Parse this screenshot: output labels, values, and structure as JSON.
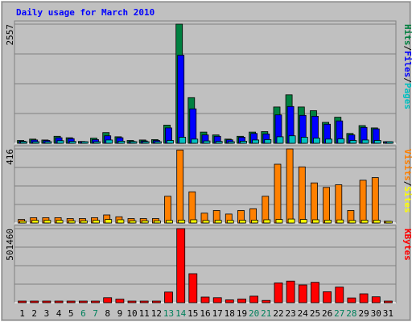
{
  "chart_data": {
    "type": "bar",
    "title": "Daily usage for March 2010",
    "categories": [
      "1",
      "2",
      "3",
      "4",
      "5",
      "6",
      "7",
      "8",
      "9",
      "10",
      "11",
      "12",
      "13",
      "14",
      "15",
      "16",
      "17",
      "18",
      "19",
      "20",
      "21",
      "22",
      "23",
      "24",
      "25",
      "26",
      "27",
      "28",
      "29",
      "30",
      "31"
    ],
    "weekend_days": [
      "6",
      "7",
      "13",
      "14",
      "20",
      "21",
      "27",
      "28"
    ],
    "panels": [
      {
        "id": "hits",
        "ymax": 2557,
        "ymax_label": "2557",
        "series": [
          {
            "name": "Hits",
            "color": "#008040",
            "values": [
              60,
              90,
              70,
              150,
              120,
              40,
              110,
              230,
              140,
              60,
              70,
              80,
              390,
              2557,
              980,
              240,
              180,
              90,
              150,
              240,
              250,
              780,
              1040,
              780,
              700,
              450,
              560,
              210,
              380,
              330,
              30
            ]
          },
          {
            "name": "Files",
            "color": "#0000ff",
            "values": [
              45,
              70,
              60,
              120,
              100,
              30,
              80,
              160,
              120,
              40,
              50,
              60,
              330,
              1890,
              740,
              180,
              150,
              75,
              130,
              210,
              200,
              610,
              790,
              600,
              580,
              410,
              480,
              180,
              340,
              310,
              25
            ]
          },
          {
            "name": "Pages",
            "color": "#00c0c0",
            "values": [
              20,
              30,
              25,
              55,
              40,
              10,
              35,
              70,
              45,
              15,
              20,
              25,
              60,
              130,
              90,
              50,
              40,
              30,
              45,
              70,
              80,
              140,
              160,
              130,
              110,
              90,
              95,
              60,
              70,
              60,
              10
            ]
          }
        ],
        "legend": [
          {
            "text": "Hits",
            "color": "#008040"
          },
          {
            "text": "/",
            "color": "#000000"
          },
          {
            "text": "Files",
            "color": "#0000ff"
          },
          {
            "text": "/",
            "color": "#000000"
          },
          {
            "text": "Pages",
            "color": "#00c0c0"
          }
        ]
      },
      {
        "id": "visits",
        "ymax": 416,
        "ymax_label": "416",
        "series": [
          {
            "name": "Visits",
            "color": "#ff8000",
            "values": [
              20,
              30,
              30,
              30,
              25,
              25,
              30,
              45,
              35,
              25,
              25,
              25,
              150,
              410,
              175,
              55,
              70,
              50,
              70,
              80,
              150,
              330,
              416,
              315,
              225,
              200,
              215,
              70,
              240,
              255,
              10
            ]
          },
          {
            "name": "Sites",
            "color": "#ffff00",
            "values": [
              10,
              15,
              15,
              15,
              12,
              12,
              15,
              20,
              18,
              12,
              12,
              12,
              14,
              16,
              18,
              14,
              15,
              14,
              15,
              16,
              18,
              20,
              22,
              20,
              18,
              16,
              17,
              14,
              16,
              16,
              5
            ]
          }
        ],
        "legend": [
          {
            "text": "Visits",
            "color": "#ff8000"
          },
          {
            "text": "/",
            "color": "#000000"
          },
          {
            "text": "Sites",
            "color": "#ffff00"
          }
        ]
      },
      {
        "id": "kbytes",
        "ymax": 501460,
        "ymax_label": "501460",
        "series": [
          {
            "name": "KBytes",
            "color": "#ff0000",
            "values": [
              5000,
              5000,
              5000,
              5000,
              5000,
              5000,
              5000,
              34000,
              24000,
              5000,
              5000,
              5000,
              72000,
              501460,
              196000,
              38000,
              34000,
              19000,
              25000,
              44000,
              15000,
              134000,
              146000,
              120000,
              138000,
              74000,
              106000,
              32000,
              60000,
              40000,
              8000
            ]
          }
        ],
        "legend": [
          {
            "text": "KBytes",
            "color": "#ff0000"
          }
        ]
      }
    ]
  },
  "colors": {
    "background": "#c0c0c0",
    "title": "#0000ff",
    "grid": "#808080",
    "weekday_label": "#000000",
    "weekend_label": "#00805c"
  }
}
